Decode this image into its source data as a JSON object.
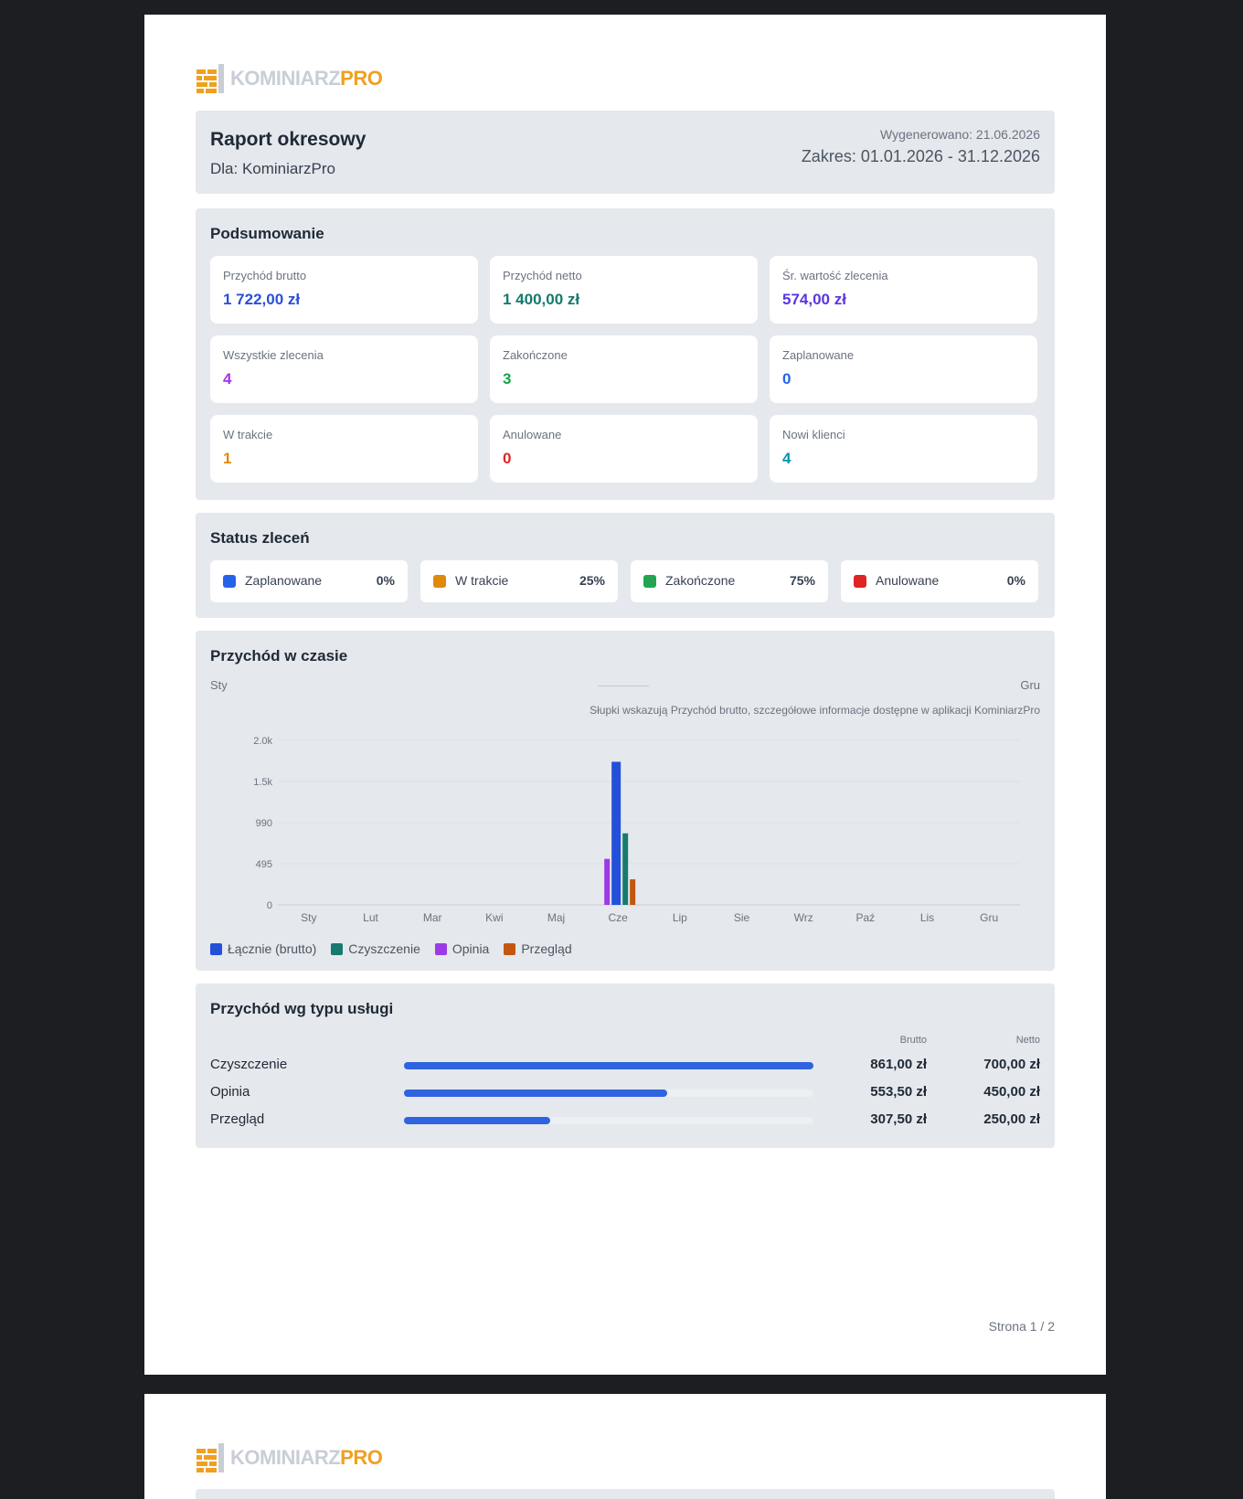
{
  "brand": {
    "name_a": "KOMINIARZ",
    "name_b": "PRO"
  },
  "header": {
    "title": "Raport okresowy",
    "for": "Dla: KominiarzPro",
    "generated": "Wygenerowano: 21.06.2026",
    "range": "Zakres: 01.01.2026 - 31.12.2026"
  },
  "summary": {
    "title": "Podsumowanie",
    "cards": [
      {
        "label": "Przychód brutto",
        "value": "1 722,00 zł",
        "color": "#2a4fd8"
      },
      {
        "label": "Przychód netto",
        "value": "1 400,00 zł",
        "color": "#137a6c"
      },
      {
        "label": "Śr. wartość zlecenia",
        "value": "574,00 zł",
        "color": "#5b35e0"
      },
      {
        "label": "Wszystkie zlecenia",
        "value": "4",
        "color": "#a533e8"
      },
      {
        "label": "Zakończone",
        "value": "3",
        "color": "#17a34a"
      },
      {
        "label": "Zaplanowane",
        "value": "0",
        "color": "#2563eb"
      },
      {
        "label": "W trakcie",
        "value": "1",
        "color": "#e08a0c"
      },
      {
        "label": "Anulowane",
        "value": "0",
        "color": "#e02424"
      },
      {
        "label": "Nowi klienci",
        "value": "4",
        "color": "#0891b2"
      }
    ]
  },
  "status": {
    "title": "Status zleceń",
    "items": [
      {
        "label": "Zaplanowane",
        "pct": "0%",
        "color": "#2563eb"
      },
      {
        "label": "W trakcie",
        "pct": "25%",
        "color": "#e08a0c"
      },
      {
        "label": "Zakończone",
        "pct": "75%",
        "color": "#22a552"
      },
      {
        "label": "Anulowane",
        "pct": "0%",
        "color": "#e02424"
      }
    ]
  },
  "revenue": {
    "title": "Przychód w czasie",
    "range_start": "Sty",
    "range_end": "Gru",
    "note": "Słupki wskazują Przychód brutto, szczegółowe informacje dostępne w aplikacji KominiarzPro"
  },
  "chart_data": {
    "type": "bar",
    "categories": [
      "Sty",
      "Lut",
      "Mar",
      "Kwi",
      "Maj",
      "Cze",
      "Lip",
      "Sie",
      "Wrz",
      "Paź",
      "Lis",
      "Gru"
    ],
    "y_ticks": [
      "0",
      "495",
      "990",
      "1.5k",
      "2.0k"
    ],
    "ylim": [
      0,
      1980
    ],
    "series": [
      {
        "name": "Opinia",
        "color": "#9b3be6",
        "values": [
          0,
          0,
          0,
          0,
          0,
          553.5,
          0,
          0,
          0,
          0,
          0,
          0
        ]
      },
      {
        "name": "Łącznie (brutto)",
        "color": "#2350d8",
        "values": [
          0,
          0,
          0,
          0,
          0,
          1722,
          0,
          0,
          0,
          0,
          0,
          0
        ]
      },
      {
        "name": "Czyszczenie",
        "color": "#167a6e",
        "values": [
          0,
          0,
          0,
          0,
          0,
          861,
          0,
          0,
          0,
          0,
          0,
          0
        ]
      },
      {
        "name": "Przegląd",
        "color": "#c2570f",
        "values": [
          0,
          0,
          0,
          0,
          0,
          307.5,
          0,
          0,
          0,
          0,
          0,
          0
        ]
      }
    ],
    "legend": [
      {
        "name": "Łącznie (brutto)",
        "color": "#2350d8"
      },
      {
        "name": "Czyszczenie",
        "color": "#167a6e"
      },
      {
        "name": "Opinia",
        "color": "#9b3be6"
      },
      {
        "name": "Przegląd",
        "color": "#c2570f"
      }
    ]
  },
  "services": {
    "title": "Przychód wg typu usługi",
    "col_brutto": "Brutto",
    "col_netto": "Netto",
    "rows": [
      {
        "name": "Czyszczenie",
        "share": 1.0,
        "brutto": "861,00 zł",
        "netto": "700,00 zł"
      },
      {
        "name": "Opinia",
        "share": 0.643,
        "brutto": "553,50 zł",
        "netto": "450,00 zł"
      },
      {
        "name": "Przegląd",
        "share": 0.357,
        "brutto": "307,50 zł",
        "netto": "250,00 zł"
      }
    ]
  },
  "footer": {
    "page": "Strona 1 / 2"
  }
}
